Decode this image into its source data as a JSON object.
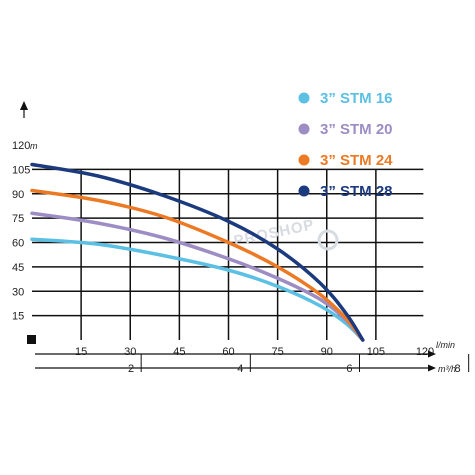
{
  "chart_data": {
    "type": "line",
    "y_unit": "m",
    "x_unit": "l/min",
    "x2_unit": "m³/h",
    "xlim": [
      0,
      120
    ],
    "ylim": [
      0,
      120
    ],
    "x_ticks": [
      15,
      30,
      45,
      60,
      75,
      90,
      105,
      120
    ],
    "y_ticks": [
      15,
      30,
      45,
      60,
      75,
      90,
      105,
      120
    ],
    "x2_ticks": [
      2,
      4,
      6,
      8
    ],
    "x2_per_unit": 16.6667,
    "grid": true,
    "legend_position": "top-right",
    "watermark": "PROSHOP",
    "series": [
      {
        "name": "3” STM 16",
        "color": "#5bc0e4",
        "x": [
          0,
          20,
          40,
          60,
          75,
          88,
          96,
          101
        ],
        "y": [
          62,
          59,
          52,
          43,
          33,
          21,
          10,
          0
        ]
      },
      {
        "name": "3” STM 20",
        "color": "#9d8dc4",
        "x": [
          0,
          20,
          40,
          60,
          75,
          88,
          96,
          101
        ],
        "y": [
          78,
          72,
          63,
          50,
          38,
          25,
          12,
          0
        ]
      },
      {
        "name": "3” STM 24",
        "color": "#ec7a24",
        "x": [
          0,
          20,
          40,
          60,
          75,
          88,
          96,
          101
        ],
        "y": [
          92,
          86,
          76,
          60,
          45,
          28,
          13,
          0
        ]
      },
      {
        "name": "3” STM 28",
        "color": "#1c3a7e",
        "x": [
          0,
          20,
          40,
          60,
          75,
          88,
          96,
          101
        ],
        "y": [
          108,
          101,
          89,
          73,
          56,
          35,
          16,
          0
        ]
      }
    ]
  }
}
